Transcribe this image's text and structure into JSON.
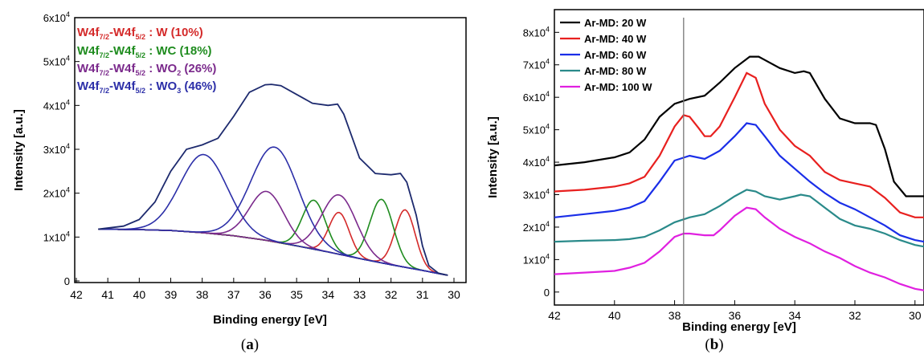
{
  "chart_data": [
    {
      "type": "line",
      "caption_pre": "(",
      "caption_letter": "a",
      "caption_post": ")",
      "xlabel": "Binding energy [eV]",
      "ylabel": "Intensity [a.u.]",
      "xlim": [
        42,
        30
      ],
      "ylim": [
        0,
        60000
      ],
      "xticks": [
        42,
        41,
        40,
        39,
        38,
        37,
        36,
        35,
        34,
        33,
        32,
        31,
        30
      ],
      "yticks": [
        {
          "value": 0,
          "mant": "0",
          "exp": ""
        },
        {
          "value": 10000,
          "mant": "1x10",
          "exp": "4"
        },
        {
          "value": 20000,
          "mant": "2x10",
          "exp": "4"
        },
        {
          "value": 30000,
          "mant": "3x10",
          "exp": "4"
        },
        {
          "value": 40000,
          "mant": "4x10",
          "exp": "4"
        },
        {
          "value": 50000,
          "mant": "5x10",
          "exp": "4"
        },
        {
          "value": 60000,
          "mant": "6x10",
          "exp": "4"
        }
      ],
      "legend": [
        {
          "a": "W4f",
          "s1": "7/2",
          "b": "-W4f",
          "s2": "5/2",
          "c": " : W (10%)",
          "d": "",
          "e": "",
          "color": "#d42a2a"
        },
        {
          "a": "W4f",
          "s1": "7/2",
          "b": "-W4f",
          "s2": "5/2",
          "c": " : WC (18%)",
          "d": "",
          "e": "",
          "color": "#1f8c1f"
        },
        {
          "a": "W4f",
          "s1": "7/2",
          "b": "-W4f",
          "s2": "5/2",
          "c": " : WO",
          "d": "2",
          "e": " (26%)",
          "color": "#7b2a8c"
        },
        {
          "a": "W4f",
          "s1": "7/2",
          "b": "-W4f",
          "s2": "5/2",
          "c": " : WO",
          "d": "3",
          "e": " (46%)",
          "color": "#2c2fa8"
        }
      ],
      "background": {
        "color": "#6a6a3a",
        "x": [
          41.3,
          40,
          39,
          38,
          37,
          36,
          35,
          34,
          33,
          32,
          31,
          30.5,
          30.2
        ],
        "values": [
          11800,
          11700,
          11500,
          11000,
          10300,
          9300,
          8000,
          6600,
          5100,
          3700,
          2400,
          1700,
          1300
        ]
      },
      "envelope": {
        "color": "#1d2a6e",
        "x": [
          41.3,
          40.5,
          40,
          39.5,
          39,
          38.5,
          38,
          37.5,
          37,
          36.5,
          36,
          35.8,
          35.5,
          35,
          34.5,
          34,
          33.7,
          33.5,
          33,
          32.5,
          32,
          31.7,
          31.5,
          31.2,
          31,
          30.8,
          30.5,
          30.2
        ],
        "values": [
          11800,
          12500,
          14000,
          18000,
          25000,
          30000,
          31000,
          32500,
          37500,
          43000,
          44700,
          44800,
          44500,
          42500,
          40500,
          40000,
          40300,
          38000,
          28000,
          24500,
          24200,
          24500,
          22500,
          15000,
          8000,
          3500,
          1800,
          1300
        ]
      },
      "series": [
        {
          "color": "#d42a2a",
          "peaks": [
            {
              "center": 33.65,
              "height": 15600,
              "sigma": 0.32
            },
            {
              "center": 31.55,
              "height": 16200,
              "sigma": 0.32
            }
          ]
        },
        {
          "color": "#1f8c1f",
          "peaks": [
            {
              "center": 34.45,
              "height": 18400,
              "sigma": 0.37
            },
            {
              "center": 32.3,
              "height": 18600,
              "sigma": 0.37
            }
          ]
        },
        {
          "color": "#7b2a8c",
          "peaks": [
            {
              "center": 35.95,
              "height": 20400,
              "sigma": 0.55
            },
            {
              "center": 33.65,
              "height": 19600,
              "sigma": 0.55
            }
          ]
        },
        {
          "color": "#2c2fa8",
          "peaks": [
            {
              "center": 37.95,
              "height": 28800,
              "sigma": 0.75
            },
            {
              "center": 35.7,
              "height": 30500,
              "sigma": 0.75
            }
          ]
        }
      ]
    },
    {
      "type": "line",
      "caption_pre": "(",
      "caption_letter": "b",
      "caption_post": ")",
      "xlabel": "Binding energy [eV]",
      "ylabel": "Intensity [a.u.]",
      "xlim": [
        42,
        29.7
      ],
      "ylim": [
        -4000,
        87000
      ],
      "xticks": [
        42,
        40,
        38,
        36,
        34,
        32,
        30
      ],
      "yticks": [
        {
          "value": 0,
          "mant": "0",
          "exp": ""
        },
        {
          "value": 10000,
          "mant": "1x10",
          "exp": "4"
        },
        {
          "value": 20000,
          "mant": "2x10",
          "exp": "4"
        },
        {
          "value": 30000,
          "mant": "3x10",
          "exp": "4"
        },
        {
          "value": 40000,
          "mant": "4x10",
          "exp": "4"
        },
        {
          "value": 50000,
          "mant": "5x10",
          "exp": "4"
        },
        {
          "value": 60000,
          "mant": "6x10",
          "exp": "4"
        },
        {
          "value": 70000,
          "mant": "7x10",
          "exp": "4"
        },
        {
          "value": 80000,
          "mant": "8x10",
          "exp": "4"
        }
      ],
      "vline_x": 37.7,
      "series": [
        {
          "name": "Ar-MD: 20 W",
          "color": "#000000",
          "x": [
            42,
            41,
            40,
            39.5,
            39,
            38.5,
            38,
            37.5,
            37,
            36.5,
            36,
            35.5,
            35.2,
            35,
            34.5,
            34,
            33.7,
            33.5,
            33,
            32.5,
            32,
            31.5,
            31.3,
            31,
            30.7,
            30.3,
            29.7
          ],
          "values": [
            39000,
            40000,
            41500,
            43000,
            47000,
            54000,
            58000,
            59500,
            60500,
            64500,
            69000,
            72500,
            72500,
            71500,
            69000,
            67500,
            68000,
            67500,
            59500,
            53500,
            52000,
            52000,
            51500,
            44000,
            34000,
            29500,
            29500
          ]
        },
        {
          "name": "Ar-MD: 40 W",
          "color": "#e8201f",
          "x": [
            42,
            41,
            40,
            39.5,
            39,
            38.5,
            38,
            37.7,
            37.5,
            37.2,
            37,
            36.8,
            36.5,
            36,
            35.6,
            35.3,
            35,
            34.5,
            34,
            33.5,
            33,
            32.5,
            32,
            31.5,
            31,
            30.5,
            30,
            29.7
          ],
          "values": [
            31000,
            31500,
            32500,
            33500,
            35500,
            42000,
            51000,
            54500,
            54000,
            50500,
            48000,
            48000,
            51000,
            60000,
            67500,
            66000,
            58000,
            50000,
            45000,
            42000,
            37000,
            34500,
            33500,
            32500,
            29000,
            24500,
            23000,
            23000
          ]
        },
        {
          "name": "Ar-MD: 60 W",
          "color": "#1a2ee8",
          "x": [
            42,
            41,
            40,
            39.5,
            39,
            38.5,
            38,
            37.5,
            37,
            36.5,
            36,
            35.6,
            35.3,
            35,
            34.5,
            34,
            33.5,
            33,
            32.5,
            32,
            31.5,
            31,
            30.5,
            30,
            29.7
          ],
          "values": [
            23000,
            24000,
            25000,
            26000,
            28000,
            34000,
            40500,
            42000,
            41000,
            43500,
            48000,
            52000,
            51500,
            48000,
            42000,
            38000,
            34000,
            30500,
            27500,
            25500,
            23000,
            20500,
            17500,
            16000,
            15500
          ]
        },
        {
          "name": "Ar-MD: 80 W",
          "color": "#2a8a8a",
          "x": [
            42,
            41,
            40,
            39.5,
            39,
            38.5,
            38,
            37.5,
            37,
            36.5,
            36,
            35.6,
            35.3,
            35,
            34.5,
            34,
            33.8,
            33.5,
            33,
            32.5,
            32,
            31.5,
            31,
            30.5,
            30,
            29.7
          ],
          "values": [
            15500,
            15800,
            16000,
            16300,
            17000,
            19000,
            21500,
            23000,
            24000,
            26500,
            29500,
            31500,
            31000,
            29500,
            28500,
            29500,
            30000,
            29500,
            26000,
            22500,
            20500,
            19500,
            18000,
            16000,
            14500,
            14000
          ]
        },
        {
          "name": "Ar-MD: 100 W",
          "color": "#e020e0",
          "x": [
            42,
            41,
            40,
            39.5,
            39,
            38.5,
            38,
            37.7,
            37.5,
            37,
            36.7,
            36.5,
            36,
            35.6,
            35.3,
            35,
            34.5,
            34,
            33.5,
            33,
            32.5,
            32,
            31.5,
            31,
            30.5,
            30,
            29.7
          ],
          "values": [
            5500,
            6000,
            6500,
            7500,
            9000,
            12500,
            17000,
            18000,
            18000,
            17500,
            17500,
            19000,
            23500,
            26000,
            25500,
            23000,
            19500,
            17000,
            15000,
            12500,
            10500,
            8000,
            6000,
            4500,
            2500,
            1000,
            500
          ]
        }
      ]
    }
  ]
}
